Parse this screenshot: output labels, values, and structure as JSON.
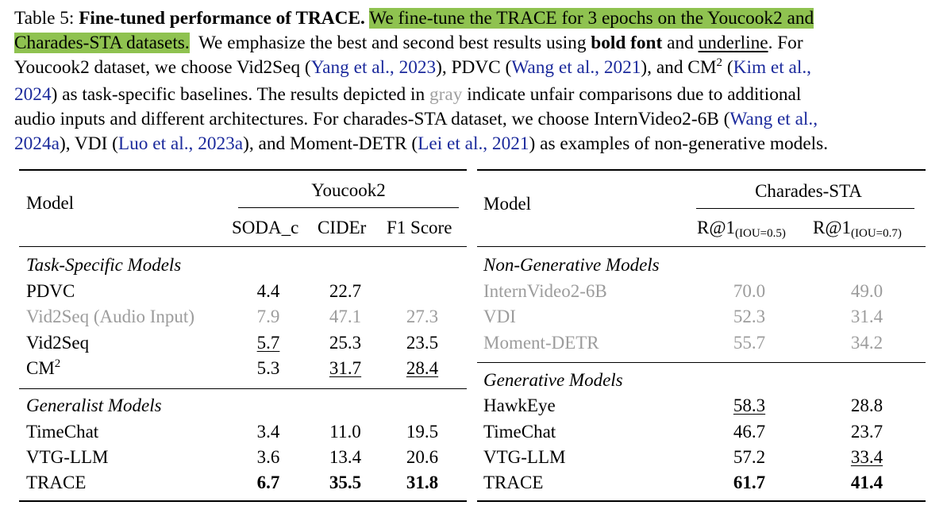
{
  "caption": {
    "label": "Table 5:",
    "title": "Fine-tuned performance of TRACE.",
    "highlight_1": "We fine-tune the TRACE for 3 epochs on the Youcook2 and",
    "highlight_2": "Charades-STA datasets.",
    "t1": "We emphasize the best and second best results using",
    "bold_word": "bold font",
    "t2": "and",
    "underline_word": "underline",
    "t3": ". For",
    "t4": "Youcook2 dataset, we choose Vid2Seq (",
    "ref_yang": "Yang et al., 2023",
    "t5": "), PDVC (",
    "ref_wang2021": "Wang et al., 2021",
    "t6": "), and CM",
    "t6_sup": "2",
    "t7": "(",
    "ref_kim_a": "Kim et al.,",
    "ref_kim_b": "2024",
    "t8": ") as task-specific baselines. The results depicted in",
    "gray_word": "gray",
    "t9": "indicate unfair comparisons due to additional",
    "t10": "audio inputs and different architectures. For charades-STA dataset, we choose InternVideo2-6B (",
    "ref_wang2024_a": "Wang et al.,",
    "ref_wang2024_b": "2024a",
    "t11": "), VDI (",
    "ref_luo": "Luo et al., 2023a",
    "t12": "), and Moment-DETR (",
    "ref_lei": "Lei et al., 2021",
    "t13": ") as examples of non-generative models."
  },
  "left_table": {
    "model_header": "Model",
    "group_header": "Youcook2",
    "columns": [
      "SODA_c",
      "CIDEr",
      "F1 Score"
    ],
    "section_1": "Task-Specific Models",
    "section_2": "Generalist Models",
    "rows": [
      {
        "model": "PDVC",
        "v": [
          "4.4",
          "22.7",
          ""
        ]
      },
      {
        "model": "Vid2Seq (Audio Input)",
        "v": [
          "7.9",
          "47.1",
          "27.3"
        ]
      },
      {
        "model": "Vid2Seq",
        "v": [
          "5.7",
          "25.3",
          "23.5"
        ]
      },
      {
        "model": "CM",
        "sup": "2",
        "v": [
          "5.3",
          "31.7",
          "28.4"
        ]
      },
      {
        "model": "TimeChat",
        "v": [
          "3.4",
          "11.0",
          "19.5"
        ]
      },
      {
        "model": "VTG-LLM",
        "v": [
          "3.6",
          "13.4",
          "20.6"
        ]
      },
      {
        "model": "TRACE",
        "v": [
          "6.7",
          "35.5",
          "31.8"
        ]
      }
    ]
  },
  "right_table": {
    "model_header": "Model",
    "group_header": "Charades-STA",
    "col_1": "R@1",
    "col_1_sub": "(IOU=0.5)",
    "col_2": "R@1",
    "col_2_sub": "(IOU=0.7)",
    "section_1": "Non-Generative Models",
    "section_2": "Generative Models",
    "rows": [
      {
        "model": "InternVideo2-6B",
        "v": [
          "70.0",
          "49.0"
        ]
      },
      {
        "model": "VDI",
        "v": [
          "52.3",
          "31.4"
        ]
      },
      {
        "model": "Moment-DETR",
        "v": [
          "55.7",
          "34.2"
        ]
      },
      {
        "model": "HawkEye",
        "v": [
          "58.3",
          "28.8"
        ]
      },
      {
        "model": "TimeChat",
        "v": [
          "46.7",
          "23.7"
        ]
      },
      {
        "model": "VTG-LLM",
        "v": [
          "57.2",
          "33.4"
        ]
      },
      {
        "model": "TRACE",
        "v": [
          "61.7",
          "41.4"
        ]
      }
    ]
  }
}
